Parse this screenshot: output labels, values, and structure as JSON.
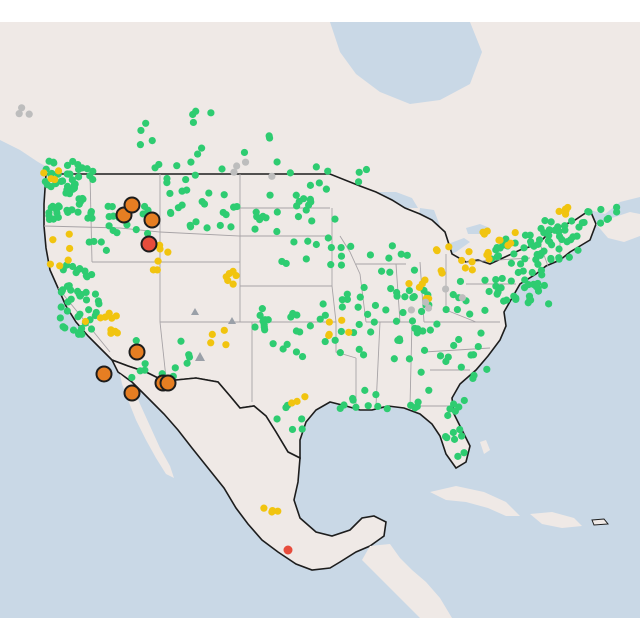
{
  "map": {
    "colors": {
      "water": "#c9d8e6",
      "land": "#efe9e6",
      "land_alt": "#ece6e2",
      "state_border": "#a7a3a6",
      "country_border": "#1d1d1d",
      "good": "#2ecc71",
      "moderate": "#f1c40f",
      "usg": "#e67e22",
      "unhealthy": "#e74c3c",
      "no_data": "#bdbdbd"
    },
    "legend_categories": [
      "good",
      "moderate",
      "usg",
      "unhealthy",
      "no_data"
    ],
    "icons": [
      "triangle-marker-icon",
      "station-dot-icon",
      "large-station-marker-icon"
    ]
  }
}
